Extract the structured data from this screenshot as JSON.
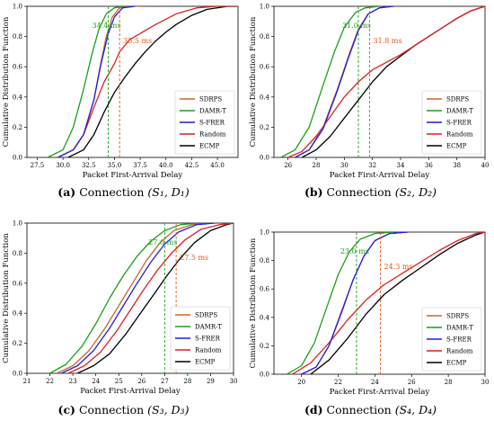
{
  "captions": [
    {
      "tag": "(a)",
      "text": "Connection",
      "math": "(S₁, D₁)"
    },
    {
      "tag": "(b)",
      "text": "Connection",
      "math": "(S₂, D₂)"
    },
    {
      "tag": "(c)",
      "text": "Connection",
      "math": "(S₃, D₃)"
    },
    {
      "tag": "(d)",
      "text": "Connection",
      "math": "(S₄, D₄)"
    }
  ],
  "colors": {
    "SDRPS": "#c8652a",
    "DAMR-T": "#1a9e1a",
    "S-FRER": "#1f1fe0",
    "Random": "#e01f1f",
    "ECMP": "#000000"
  },
  "chart_data": [
    {
      "type": "line",
      "xlabel": "Packet First-Arrival Delay",
      "ylabel": "Cumulative Distribution Function",
      "xlim": [
        26.5,
        47
      ],
      "ylim": [
        0,
        1
      ],
      "xticks": [
        "27.5",
        "30.0",
        "32.5",
        "35.0",
        "37.5",
        "40.0",
        "42.5",
        "45.0"
      ],
      "xtick_values": [
        27.5,
        30,
        32.5,
        35,
        37.5,
        40,
        42.5,
        45
      ],
      "yticks": [
        "0.0",
        "0.2",
        "0.4",
        "0.6",
        "0.8",
        "1.0"
      ],
      "legend": "lower-right",
      "series": [
        {
          "name": "SDRPS",
          "x": [
            29.5,
            31,
            32,
            33,
            33.6,
            34.2,
            34.8,
            35.5,
            36.5,
            37.5
          ],
          "y": [
            0,
            0.05,
            0.15,
            0.38,
            0.6,
            0.8,
            0.93,
            0.99,
            1,
            1
          ]
        },
        {
          "name": "DAMR-T",
          "x": [
            28.5,
            30,
            31,
            32,
            32.8,
            33.5,
            34.2,
            35,
            36
          ],
          "y": [
            0,
            0.05,
            0.2,
            0.45,
            0.68,
            0.85,
            0.95,
            0.99,
            1
          ]
        },
        {
          "name": "S-FRER",
          "x": [
            29.5,
            31,
            32,
            33,
            33.7,
            34.4,
            35,
            35.8,
            37
          ],
          "y": [
            0,
            0.05,
            0.15,
            0.38,
            0.62,
            0.82,
            0.93,
            0.99,
            1
          ]
        },
        {
          "name": "Random",
          "x": [
            29.5,
            31,
            32,
            33,
            34,
            35,
            35.5,
            36.5,
            37.5,
            39,
            41,
            43,
            45,
            47
          ],
          "y": [
            0,
            0.05,
            0.15,
            0.33,
            0.5,
            0.62,
            0.7,
            0.78,
            0.82,
            0.88,
            0.95,
            0.99,
            1,
            1
          ]
        },
        {
          "name": "ECMP",
          "x": [
            30.5,
            32,
            33,
            34,
            35,
            36,
            37,
            38,
            39,
            40,
            41,
            42.5,
            44,
            46,
            47
          ],
          "y": [
            0,
            0.05,
            0.15,
            0.3,
            0.43,
            0.53,
            0.62,
            0.7,
            0.77,
            0.83,
            0.88,
            0.94,
            0.98,
            1,
            1
          ]
        }
      ],
      "annotations": [
        {
          "x": 34.4,
          "text": "34.4 ms",
          "color": "#1a9e1a"
        },
        {
          "x": 35.5,
          "text": "35.5 ms",
          "color": "#e05a1a"
        }
      ]
    },
    {
      "type": "line",
      "xlabel": "Packet First-Arrival Delay",
      "ylabel": "Cumulative Distribution Function",
      "xlim": [
        25,
        40
      ],
      "ylim": [
        0,
        1
      ],
      "xticks": [
        "26",
        "28",
        "30",
        "32",
        "34",
        "36",
        "38",
        "40"
      ],
      "xtick_values": [
        26,
        28,
        30,
        32,
        34,
        36,
        38,
        40
      ],
      "yticks": [
        "0.0",
        "0.2",
        "0.4",
        "0.6",
        "0.8",
        "1.0"
      ],
      "legend": "lower-right",
      "series": [
        {
          "name": "SDRPS",
          "x": [
            26.5,
            27.5,
            28.5,
            29.5,
            30.3,
            31,
            31.7,
            32.5,
            33.5
          ],
          "y": [
            0,
            0.05,
            0.2,
            0.45,
            0.67,
            0.85,
            0.95,
            0.99,
            1
          ]
        },
        {
          "name": "DAMR-T",
          "x": [
            25.5,
            26.5,
            27.5,
            28.5,
            29.3,
            30,
            30.8,
            31.5,
            32.5
          ],
          "y": [
            0,
            0.05,
            0.2,
            0.48,
            0.7,
            0.86,
            0.96,
            0.99,
            1
          ]
        },
        {
          "name": "S-FRER",
          "x": [
            26.5,
            27.5,
            28.5,
            29.5,
            30.3,
            31,
            31.7,
            32.5,
            33.5
          ],
          "y": [
            0,
            0.05,
            0.19,
            0.44,
            0.66,
            0.84,
            0.95,
            0.99,
            1
          ]
        },
        {
          "name": "Random",
          "x": [
            26,
            27,
            28,
            29,
            30,
            31,
            32,
            33,
            34,
            35,
            36,
            37,
            38,
            39,
            40
          ],
          "y": [
            0,
            0.04,
            0.14,
            0.27,
            0.4,
            0.5,
            0.58,
            0.63,
            0.68,
            0.74,
            0.8,
            0.86,
            0.92,
            0.97,
            1
          ]
        },
        {
          "name": "ECMP",
          "x": [
            27,
            28,
            29,
            30,
            31,
            32,
            33,
            34,
            35,
            36,
            37,
            38,
            39,
            40
          ],
          "y": [
            0,
            0.05,
            0.14,
            0.26,
            0.38,
            0.5,
            0.6,
            0.67,
            0.74,
            0.8,
            0.86,
            0.92,
            0.97,
            1
          ]
        }
      ],
      "annotations": [
        {
          "x": 31.0,
          "text": "31.0 ms",
          "color": "#1a9e1a"
        },
        {
          "x": 31.8,
          "text": "31.8 ms",
          "color": "#e05a1a"
        }
      ]
    },
    {
      "type": "line",
      "xlabel": "Packet First-Arrival Delay",
      "ylabel": "Cumulative Distribution Function",
      "xlim": [
        21,
        30
      ],
      "ylim": [
        0,
        1
      ],
      "xticks": [
        "21",
        "22",
        "23",
        "24",
        "25",
        "26",
        "27",
        "28",
        "29",
        "30"
      ],
      "xtick_values": [
        21,
        22,
        23,
        24,
        25,
        26,
        27,
        28,
        29,
        30
      ],
      "yticks": [
        "0.0",
        "0.2",
        "0.4",
        "0.6",
        "0.8",
        "1.0"
      ],
      "legend": "lower-right",
      "series": [
        {
          "name": "SDRPS",
          "x": [
            22.3,
            23,
            23.7,
            24.4,
            25,
            25.6,
            26.2,
            26.8,
            27.4,
            28.2,
            29
          ],
          "y": [
            0,
            0.05,
            0.15,
            0.3,
            0.45,
            0.6,
            0.75,
            0.87,
            0.95,
            0.99,
            1
          ]
        },
        {
          "name": "DAMR-T",
          "x": [
            22,
            22.7,
            23.4,
            24,
            24.6,
            25.2,
            25.8,
            26.4,
            27,
            27.7,
            28.5
          ],
          "y": [
            0,
            0.06,
            0.18,
            0.33,
            0.5,
            0.65,
            0.78,
            0.88,
            0.95,
            0.99,
            1
          ]
        },
        {
          "name": "S-FRER",
          "x": [
            22.5,
            23.2,
            23.9,
            24.6,
            25.2,
            25.8,
            26.4,
            27,
            27.6,
            28.4,
            29.2
          ],
          "y": [
            0,
            0.05,
            0.15,
            0.3,
            0.45,
            0.6,
            0.74,
            0.86,
            0.94,
            0.99,
            1
          ]
        },
        {
          "name": "Random",
          "x": [
            22.8,
            23.5,
            24.2,
            24.9,
            25.5,
            26.1,
            26.7,
            27.3,
            27.9,
            28.6,
            29.4,
            30
          ],
          "y": [
            0,
            0.05,
            0.14,
            0.28,
            0.42,
            0.56,
            0.69,
            0.8,
            0.89,
            0.96,
            0.99,
            1
          ]
        },
        {
          "name": "ECMP",
          "x": [
            23.2,
            23.9,
            24.6,
            25.3,
            25.9,
            26.5,
            27.1,
            27.7,
            28.3,
            29,
            29.7,
            30
          ],
          "y": [
            0,
            0.05,
            0.13,
            0.26,
            0.39,
            0.52,
            0.65,
            0.77,
            0.87,
            0.95,
            0.99,
            1
          ]
        }
      ],
      "annotations": [
        {
          "x": 27.0,
          "text": "27.0 ms",
          "color": "#1a9e1a"
        },
        {
          "x": 27.5,
          "text": "27.5 ms",
          "color": "#e05a1a"
        }
      ]
    },
    {
      "type": "line",
      "xlabel": "Packet First-Arrival Delay",
      "ylabel": "Cumulative Distribution Function",
      "xlim": [
        18.5,
        30
      ],
      "ylim": [
        0,
        1
      ],
      "xticks": [
        "20",
        "22",
        "24",
        "26",
        "28",
        "30"
      ],
      "xtick_values": [
        20,
        22,
        24,
        26,
        28,
        30
      ],
      "yticks": [
        "0.0",
        "0.2",
        "0.4",
        "0.6",
        "0.8",
        "1.0"
      ],
      "legend": "lower-right",
      "series": [
        {
          "name": "SDRPS",
          "x": [
            20,
            20.8,
            21.5,
            22.2,
            22.8,
            23.4,
            24,
            24.8,
            25.8
          ],
          "y": [
            0,
            0.05,
            0.2,
            0.45,
            0.66,
            0.83,
            0.94,
            0.99,
            1
          ]
        },
        {
          "name": "DAMR-T",
          "x": [
            19.2,
            20,
            20.7,
            21.4,
            22,
            22.6,
            23.2,
            24,
            25
          ],
          "y": [
            0,
            0.06,
            0.22,
            0.48,
            0.7,
            0.86,
            0.95,
            0.99,
            1
          ]
        },
        {
          "name": "S-FRER",
          "x": [
            20,
            20.8,
            21.5,
            22.2,
            22.8,
            23.4,
            24,
            24.8,
            25.8
          ],
          "y": [
            0,
            0.05,
            0.2,
            0.44,
            0.66,
            0.83,
            0.94,
            0.99,
            1
          ]
        },
        {
          "name": "Random",
          "x": [
            19.5,
            20.5,
            21.5,
            22.5,
            23.5,
            24.5,
            25.5,
            26.5,
            27.5,
            28.5,
            29.5,
            30
          ],
          "y": [
            0,
            0.08,
            0.22,
            0.38,
            0.52,
            0.63,
            0.71,
            0.79,
            0.87,
            0.94,
            0.99,
            1
          ]
        },
        {
          "name": "ECMP",
          "x": [
            20.5,
            21.5,
            22.5,
            23.5,
            24.5,
            25.5,
            26.5,
            27.5,
            28.5,
            29.5,
            30
          ],
          "y": [
            0,
            0.1,
            0.25,
            0.42,
            0.56,
            0.66,
            0.75,
            0.84,
            0.92,
            0.98,
            1
          ]
        }
      ],
      "annotations": [
        {
          "x": 23.0,
          "text": "23.0 ms",
          "color": "#1a9e1a"
        },
        {
          "x": 24.3,
          "text": "24.3 ms",
          "color": "#e05a1a"
        }
      ]
    }
  ]
}
